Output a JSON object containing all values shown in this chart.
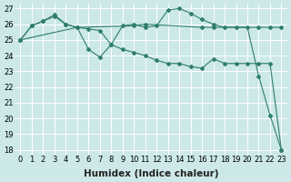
{
  "xlabel": "Humidex (Indice chaleur)",
  "x_ticks": [
    0,
    1,
    2,
    3,
    4,
    5,
    6,
    7,
    8,
    9,
    10,
    11,
    12,
    13,
    14,
    15,
    16,
    17,
    18,
    19,
    20,
    21,
    22,
    23
  ],
  "ylim": [
    18,
    27
  ],
  "xlim": [
    -0.5,
    23.5
  ],
  "y_ticks": [
    18,
    19,
    20,
    21,
    22,
    23,
    24,
    25,
    26,
    27
  ],
  "line1_x": [
    0,
    1,
    2,
    3,
    4,
    5,
    10,
    11,
    16,
    17,
    21,
    22,
    23
  ],
  "line1_y": [
    25.0,
    25.9,
    26.2,
    26.5,
    26.0,
    25.8,
    25.9,
    26.0,
    25.8,
    25.8,
    25.8,
    25.8,
    25.8
  ],
  "line2_x": [
    0,
    1,
    2,
    3,
    4,
    5,
    6,
    7,
    8,
    9,
    10,
    11,
    12,
    13,
    14,
    15,
    16,
    17,
    18,
    19,
    20,
    21,
    22,
    23
  ],
  "line2_y": [
    25.0,
    25.9,
    26.2,
    26.6,
    26.0,
    25.8,
    24.4,
    23.9,
    24.7,
    25.9,
    26.0,
    25.8,
    25.9,
    26.9,
    27.0,
    26.7,
    26.3,
    26.0,
    25.8,
    25.8,
    25.8,
    22.7,
    20.2,
    18.0
  ],
  "line3_x": [
    0,
    5,
    6,
    7,
    8,
    9,
    10,
    11,
    12,
    13,
    14,
    15,
    16,
    17,
    18,
    19,
    20,
    21,
    22,
    23
  ],
  "line3_y": [
    25.0,
    25.8,
    25.7,
    25.6,
    24.7,
    24.4,
    24.2,
    24.0,
    23.7,
    23.5,
    23.5,
    23.3,
    23.2,
    23.8,
    23.5,
    23.5,
    23.5,
    23.5,
    23.5,
    18.0
  ],
  "line_color": "#2e7d6e",
  "bg_color": "#cce8e8",
  "plot_bg": "#cce8e8",
  "grid_color": "#ffffff",
  "tick_label_fontsize": 6.0,
  "xlabel_fontsize": 7.5
}
